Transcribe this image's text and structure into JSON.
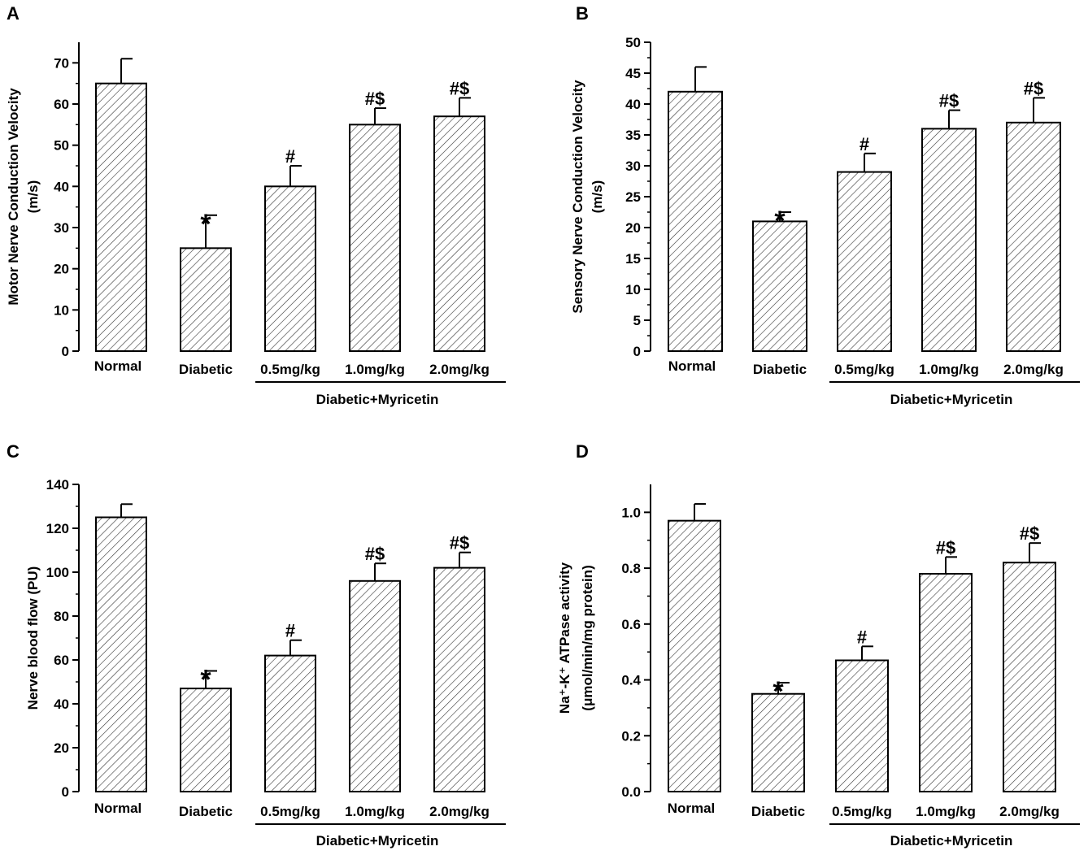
{
  "chart_data": [
    {
      "type": "bar",
      "panel": "A",
      "categories": [
        "Normal",
        "Diabetic",
        "0.5mg/kg",
        "1.0mg/kg",
        "2.0mg/kg"
      ],
      "values": [
        65,
        25,
        40,
        55,
        57
      ],
      "errors": [
        6,
        8,
        5,
        4,
        4.5
      ],
      "annotations": [
        "",
        "*",
        "#",
        "#$",
        "#$"
      ],
      "ylabel_lines": [
        "Motor Nerve Conduction Velocity",
        "(m/s)"
      ],
      "ylim": [
        0,
        75
      ],
      "yticks": [
        0,
        10,
        20,
        30,
        40,
        50,
        60,
        70
      ],
      "ytick_labels": [
        "0",
        "10",
        "20",
        "30",
        "40",
        "50",
        "60",
        "70"
      ],
      "group_label": "Diabetic+Myricetin",
      "title": "",
      "xlabel": ""
    },
    {
      "type": "bar",
      "panel": "B",
      "categories": [
        "Normal",
        "Diabetic",
        "0.5mg/kg",
        "1.0mg/kg",
        "2.0mg/kg"
      ],
      "values": [
        42,
        21,
        29,
        36,
        37
      ],
      "errors": [
        4,
        1.5,
        3,
        3,
        4
      ],
      "annotations": [
        "",
        "*",
        "#",
        "#$",
        "#$"
      ],
      "ylabel_lines": [
        "Sensory Nerve Conduction Velocity",
        "(m/s)"
      ],
      "ylim": [
        0,
        50
      ],
      "yticks": [
        0,
        5,
        10,
        15,
        20,
        25,
        30,
        35,
        40,
        45,
        50
      ],
      "ytick_labels": [
        "0",
        "5",
        "10",
        "15",
        "20",
        "25",
        "30",
        "35",
        "40",
        "45",
        "50"
      ],
      "group_label": "Diabetic+Myricetin",
      "title": "",
      "xlabel": ""
    },
    {
      "type": "bar",
      "panel": "C",
      "categories": [
        "Normal",
        "Diabetic",
        "0.5mg/kg",
        "1.0mg/kg",
        "2.0mg/kg"
      ],
      "values": [
        125,
        47,
        62,
        96,
        102
      ],
      "errors": [
        6,
        8,
        7,
        8,
        7
      ],
      "annotations": [
        "",
        "*",
        "#",
        "#$",
        "#$"
      ],
      "ylabel_lines": [
        "Nerve blood flow (PU)"
      ],
      "ylim": [
        0,
        140
      ],
      "yticks": [
        0,
        20,
        40,
        60,
        80,
        100,
        120,
        140
      ],
      "ytick_labels": [
        "0",
        "20",
        "40",
        "60",
        "80",
        "100",
        "120",
        "140"
      ],
      "group_label": "Diabetic+Myricetin",
      "title": "",
      "xlabel": ""
    },
    {
      "type": "bar",
      "panel": "D",
      "categories": [
        "Normal",
        "Diabetic",
        "0.5mg/kg",
        "1.0mg/kg",
        "2.0mg/kg"
      ],
      "values": [
        0.97,
        0.35,
        0.47,
        0.78,
        0.82
      ],
      "errors": [
        0.06,
        0.04,
        0.05,
        0.06,
        0.07
      ],
      "annotations": [
        "",
        "*",
        "#",
        "#$",
        "#$"
      ],
      "ylabel_lines": [
        "Na⁺-K⁺ ATPase activity",
        "(μmol/min/mg protein)"
      ],
      "ylim": [
        0,
        1.1
      ],
      "yticks": [
        0,
        0.2,
        0.4,
        0.6,
        0.8,
        1.0
      ],
      "ytick_labels": [
        "0.0",
        "0.2",
        "0.4",
        "0.6",
        "0.8",
        "1.0"
      ],
      "group_label": "Diabetic+Myricetin",
      "title": "",
      "xlabel": ""
    }
  ]
}
